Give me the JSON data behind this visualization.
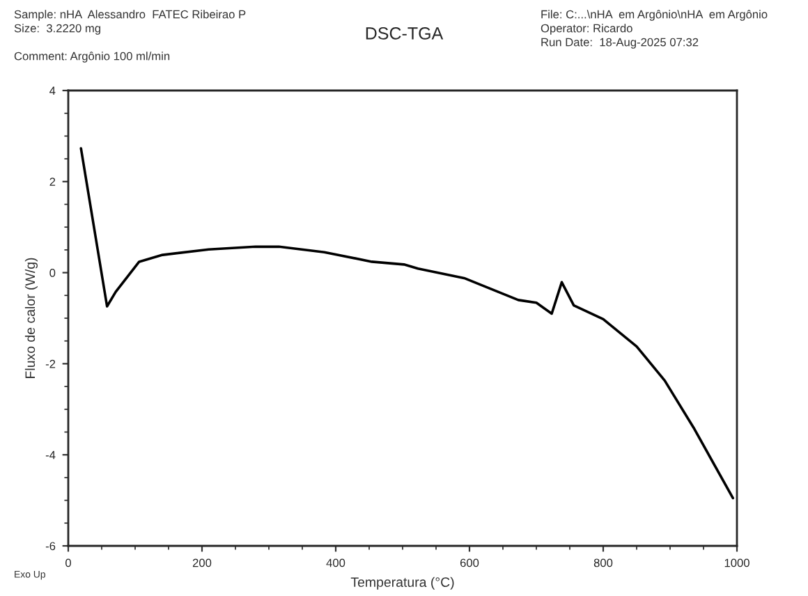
{
  "chart_data": {
    "type": "line",
    "title": "DSC-TGA",
    "xlabel": "Temperatura (°C)",
    "ylabel": "Fluxo de calor (W/g)",
    "annotations": [
      "Sample: nHA  Alessandro  FATEC Ribeirao P",
      "Size:  3.2220 mg",
      "Comment: Argônio 100 ml/min",
      "File: C:...\\nHA  em Argônio\\nHA  em Argônio",
      "Operator: Ricardo",
      "Run Date:  18-Aug-2025 07:32",
      "Exo Up"
    ],
    "x": [
      19,
      58,
      71,
      106,
      141,
      210,
      280,
      315,
      383,
      454,
      502,
      523,
      592,
      673,
      700,
      723,
      738,
      756,
      800,
      850,
      892,
      935,
      994
    ],
    "series": [
      {
        "color": "#000000",
        "values": [
          2.73,
          -0.74,
          -0.42,
          0.24,
          0.39,
          0.51,
          0.57,
          0.57,
          0.45,
          0.24,
          0.18,
          0.09,
          -0.12,
          -0.6,
          -0.66,
          -0.9,
          -0.21,
          -0.72,
          -1.02,
          -1.62,
          -2.37,
          -3.4,
          -4.95
        ]
      }
    ],
    "xlim": [
      0,
      1000
    ],
    "ylim": [
      -6,
      4
    ],
    "xticks": [
      0,
      200,
      400,
      600,
      800,
      1000
    ],
    "yticks": [
      -6,
      -4,
      -2,
      0,
      2,
      4
    ],
    "grid": false,
    "legend": false,
    "marker": "none",
    "line_style": "solid"
  }
}
